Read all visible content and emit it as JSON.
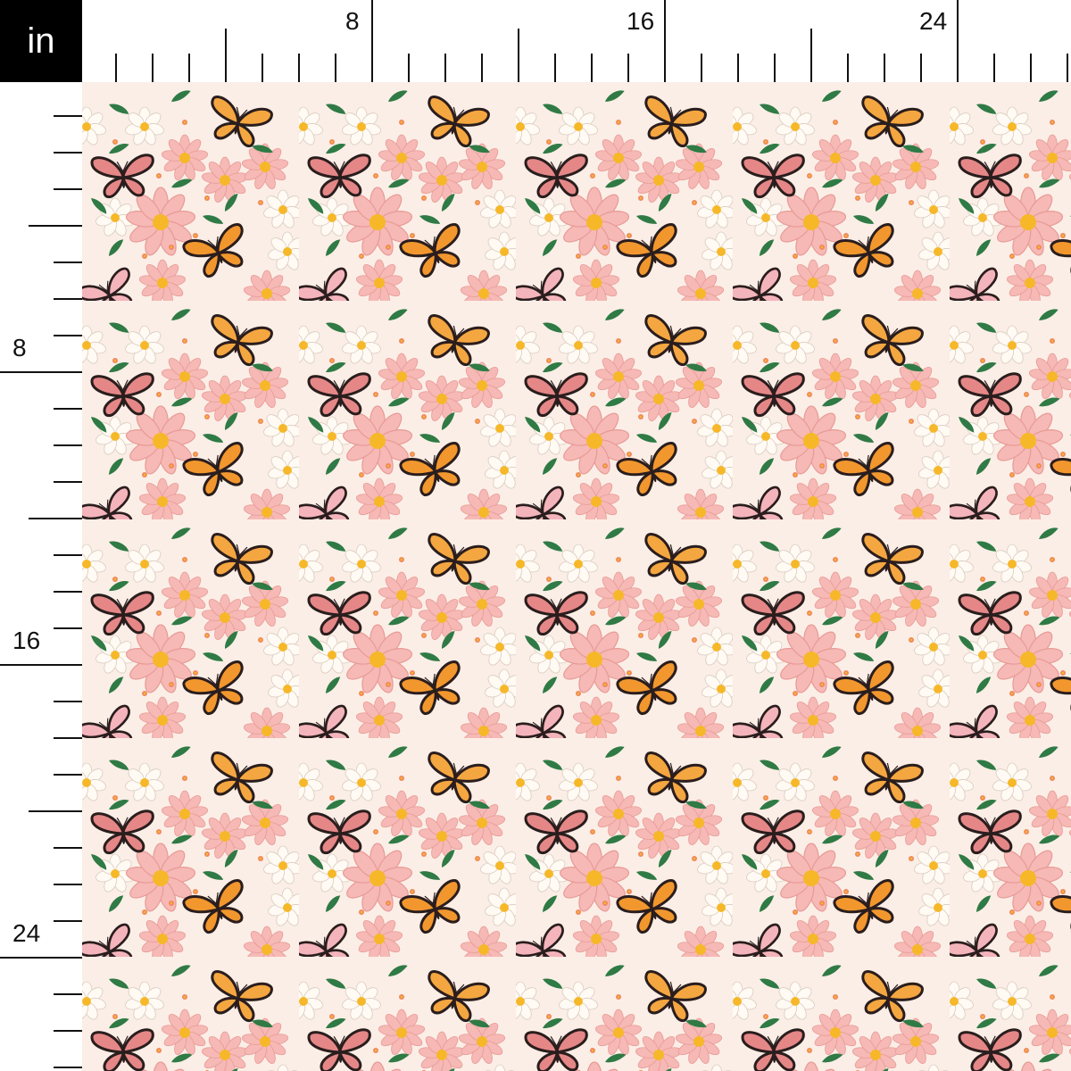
{
  "ruler": {
    "unit": "in",
    "top_labels": [
      "8",
      "16",
      "24"
    ],
    "left_labels": [
      "8",
      "16",
      "24"
    ]
  },
  "fabric": {
    "background": "#fbeee6",
    "colors": {
      "pink_flower": "#f6b9b5",
      "white_daisy": "#fffaf3",
      "flower_center": "#f6b829",
      "orange_butterfly": "#f2972e",
      "pink_butterfly": "#e58787",
      "light_pink_butterfly": "#f4b4bb",
      "leaf": "#2f7a45",
      "outline": "#2a1d1d"
    }
  }
}
